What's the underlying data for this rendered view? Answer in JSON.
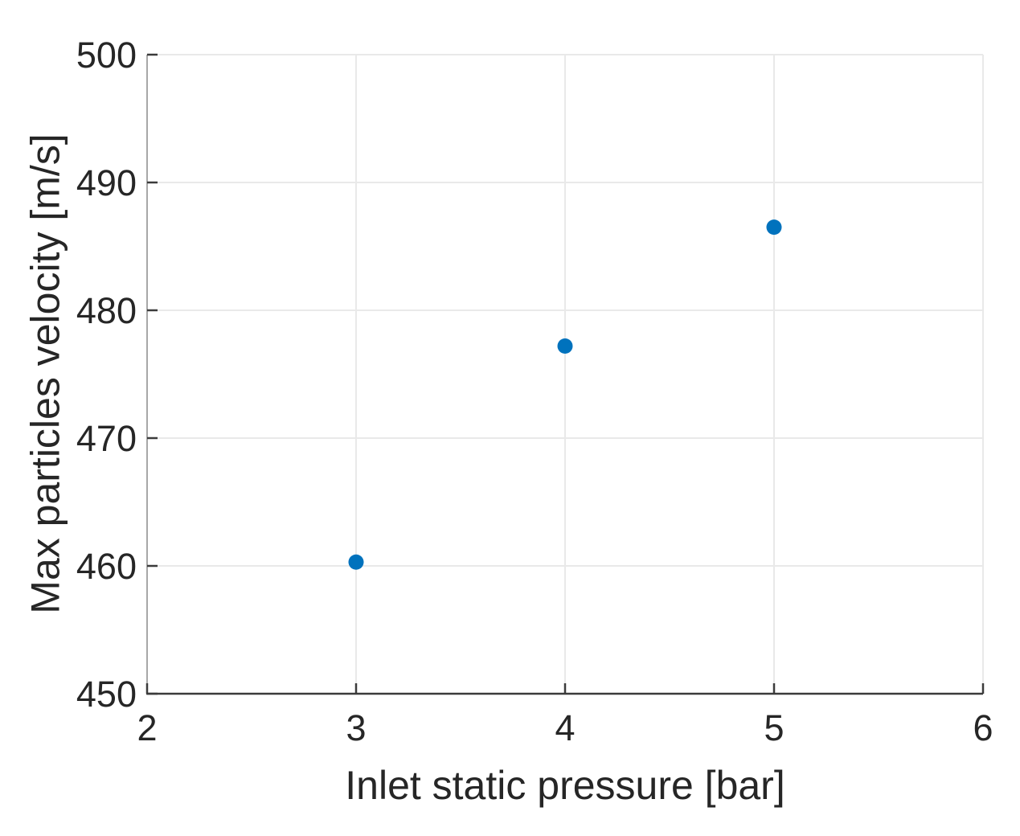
{
  "chart_data": {
    "type": "scatter",
    "title": "",
    "xlabel": "Inlet static pressure [bar]",
    "ylabel": "Max particles velocity [m/s]",
    "series": [
      {
        "name": "Max particles velocity",
        "points": [
          {
            "x": 3,
            "y": 460.3
          },
          {
            "x": 4,
            "y": 477.2
          },
          {
            "x": 5,
            "y": 486.5
          }
        ]
      }
    ],
    "xlim": [
      2,
      6
    ],
    "ylim": [
      450,
      500
    ],
    "xticks": [
      2,
      3,
      4,
      5,
      6
    ],
    "yticks": [
      450,
      460,
      470,
      480,
      490,
      500
    ],
    "grid": true,
    "legend": null,
    "marker": {
      "shape": "circle",
      "fill": "#0072BD",
      "radius_px": 9.5
    },
    "colors": {
      "plot_background": "#ffffff",
      "grid_line": "#e9e9e9",
      "bottom_axis": "#3b3b3b",
      "left_axis": "#a8a8a8",
      "tick_mark": "#3b3b3b",
      "text": "#262626"
    }
  }
}
